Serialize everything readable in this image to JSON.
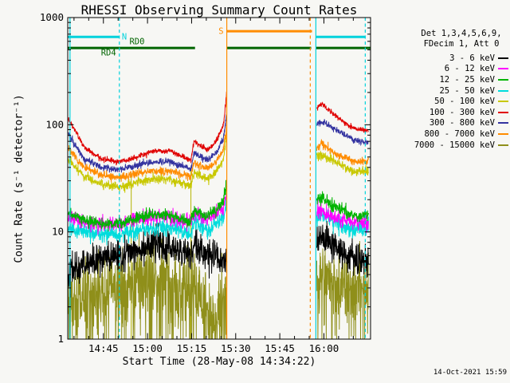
{
  "title": "RHESSI Observing Summary Count Rates",
  "footer_timestamp": "14-Oct-2021 15:59",
  "chart_data": {
    "type": "line",
    "title": "RHESSI Observing Summary Count Rates",
    "xlabel": "Start Time (28-May-08 14:34:22)",
    "ylabel": "Count Rate (s⁻¹ detector⁻¹)",
    "ylog": true,
    "ylim": [
      1,
      1000
    ],
    "x_range_minutes": [
      -1.5,
      101.5
    ],
    "x_ticks": [
      {
        "t": 10.633,
        "label": "14:45"
      },
      {
        "t": 25.633,
        "label": "15:00"
      },
      {
        "t": 40.633,
        "label": "15:15"
      },
      {
        "t": 55.633,
        "label": "15:30"
      },
      {
        "t": 70.633,
        "label": "15:45"
      },
      {
        "t": 85.633,
        "label": "16:00"
      }
    ],
    "x_minor_step": 5,
    "x_minor_offset": 0.633,
    "y_ticks": [
      {
        "v": 1,
        "label": "1"
      },
      {
        "v": 10,
        "label": "10"
      },
      {
        "v": 100,
        "label": "100"
      },
      {
        "v": 1000,
        "label": "1000"
      }
    ],
    "legend_header": [
      "Det 1,3,4,5,6,9,",
      "FDecim 1, Att 0"
    ],
    "series": [
      {
        "name": "3 - 6 keV",
        "color": "#000000",
        "noise": 0.075,
        "segments": [
          {
            "t": [
              -1.3,
              4,
              10,
              16,
              22,
              27,
              33,
              38,
              40.4,
              41.5,
              43,
              46,
              49,
              51.5,
              52.6
            ],
            "v": [
              4.2,
              5,
              5.5,
              6,
              7,
              7.5,
              7.2,
              6.3,
              6,
              7.5,
              7,
              6.2,
              5.6,
              5.2,
              5.2
            ]
          },
          {
            "t": [
              83.2,
              85,
              88,
              92,
              96,
              100.8
            ],
            "v": [
              8.5,
              8.5,
              7.5,
              6.5,
              5.6,
              5.2
            ]
          }
        ]
      },
      {
        "name": "6 - 12 keV",
        "color": "#ff00ff",
        "noise": 0.035,
        "segments": [
          {
            "t": [
              -1.3,
              4,
              10,
              16,
              22,
              27,
              33,
              38,
              40.4,
              41.5,
              43,
              46,
              49,
              51.5,
              52.6
            ],
            "v": [
              14,
              12.5,
              12,
              12,
              13,
              14,
              13.5,
              12.5,
              12,
              15,
              14,
              13,
              14.5,
              17,
              22
            ]
          },
          {
            "t": [
              83.2,
              85,
              88,
              92,
              96,
              100.8
            ],
            "v": [
              15,
              15.5,
              14,
              13,
              12,
              12
            ]
          }
        ]
      },
      {
        "name": "12 - 25 keV",
        "color": "#00b400",
        "noise": 0.028,
        "segments": [
          {
            "t": [
              -1.3,
              4,
              10,
              16,
              22,
              27,
              33,
              38,
              40.4,
              41.5,
              43,
              46,
              49,
              51.5,
              52.6
            ],
            "v": [
              15,
              13,
              12,
              12,
              13.5,
              14.5,
              14.5,
              13,
              12.5,
              16,
              15,
              14,
              16,
              20,
              28
            ]
          },
          {
            "t": [
              83.2,
              85,
              88,
              92,
              96,
              100.8
            ],
            "v": [
              20,
              21,
              18,
              16,
              14,
              14
            ]
          }
        ]
      },
      {
        "name": "25 - 50 keV",
        "color": "#00dcdc",
        "noise": 0.04,
        "segments": [
          {
            "t": [
              -1.3,
              4,
              10,
              16,
              22,
              27,
              33,
              38,
              40.4,
              41.5,
              43,
              46,
              49,
              51.5,
              52.6
            ],
            "v": [
              11,
              10,
              9.5,
              9.5,
              10.5,
              11,
              11,
              10,
              9.8,
              12.5,
              11.5,
              10.5,
              12,
              14,
              18
            ]
          },
          {
            "t": [
              83.2,
              85,
              88,
              92,
              96,
              100.8
            ],
            "v": [
              14,
              14.5,
              13,
              11.5,
              10.5,
              11
            ]
          }
        ]
      },
      {
        "name": "50 - 100 keV",
        "color": "#c8c800",
        "noise": 0.022,
        "segments": [
          {
            "t": [
              -1.3,
              4,
              10,
              16,
              22,
              27,
              33,
              38,
              40.4,
              41.5,
              43,
              46,
              49,
              51.5,
              52.6
            ],
            "v": [
              48,
              33,
              28,
              26,
              29,
              31,
              31,
              28,
              27,
              37,
              34,
              31,
              36,
              48,
              80
            ]
          },
          {
            "t": [
              83.2,
              85,
              88,
              92,
              96,
              100.8
            ],
            "v": [
              50,
              53,
              47,
              41,
              36,
              37
            ]
          }
        ]
      },
      {
        "name": "100 - 300 keV",
        "color": "#e00000",
        "noise": 0.013,
        "segments": [
          {
            "t": [
              -1.3,
              4,
              10,
              16,
              22,
              27,
              33,
              38,
              40.4,
              41.5,
              43,
              46,
              49,
              51.5,
              52.6
            ],
            "v": [
              115,
              62,
              48,
              45,
              50,
              56,
              57,
              50,
              47,
              72,
              66,
              58,
              70,
              100,
              200
            ]
          },
          {
            "t": [
              83.2,
              85,
              87,
              90,
              93,
              96,
              100.8
            ],
            "v": [
              140,
              158,
              138,
              118,
              103,
              92,
              88
            ]
          }
        ]
      },
      {
        "name": "300 - 800 keV",
        "color": "#3333a0",
        "noise": 0.016,
        "segments": [
          {
            "t": [
              -1.3,
              4,
              10,
              16,
              22,
              27,
              33,
              38,
              40.4,
              41.5,
              43,
              46,
              49,
              51.5,
              52.6
            ],
            "v": [
              82,
              48,
              40,
              38,
              42,
              45,
              45,
              41,
              39,
              55,
              52,
              47,
              55,
              75,
              130
            ]
          },
          {
            "t": [
              83.2,
              85,
              88,
              92,
              96,
              100.8
            ],
            "v": [
              100,
              108,
              95,
              83,
              72,
              68
            ]
          }
        ]
      },
      {
        "name": "800 - 7000 keV",
        "color": "#ff8c00",
        "noise": 0.018,
        "segments": [
          {
            "t": [
              -1.3,
              4,
              10,
              16,
              22,
              27,
              33,
              38,
              40.4,
              41.5,
              43,
              46,
              49,
              51.5,
              52.6
            ],
            "v": [
              60,
              40,
              34,
              32,
              35,
              37,
              37,
              34,
              33,
              45,
              42,
              39,
              45,
              60,
              100
            ]
          },
          {
            "t": [
              83.2,
              85,
              88,
              92,
              96,
              100.8
            ],
            "v": [
              62,
              66,
              58,
              50,
              45,
              46
            ]
          }
        ]
      },
      {
        "name": "7000 - 15000 keV",
        "color": "#8f8f1a",
        "noise": 0.16,
        "spiky": true,
        "segments": [
          {
            "t": [
              -1.3,
              6,
              12,
              20,
              27,
              33,
              38,
              41.5,
              44,
              47,
              50,
              52.6
            ],
            "v": [
              2.2,
              2.5,
              3,
              3.5,
              4,
              3.6,
              3,
              3.2,
              2.2,
              1.7,
              1.8,
              2
            ]
          },
          {
            "t": [
              83.2,
              86,
              90,
              94,
              100.8
            ],
            "v": [
              4,
              4,
              3.3,
              2.8,
              3
            ]
          }
        ]
      }
    ],
    "draw_order": [
      8,
      0,
      3,
      1,
      2,
      4,
      7,
      6,
      5
    ],
    "flags": [
      {
        "label": "N",
        "color": "#00d2dc",
        "value": 660,
        "spans": [
          [
            -1.5,
            16.06
          ],
          [
            82.9,
            99.7
          ]
        ],
        "text_labels": [
          {
            "text": "N",
            "t": 16.9,
            "v": 660
          }
        ]
      },
      {
        "label": "S",
        "color": "#ff8c00",
        "value": 745,
        "spans": [
          [
            52.6,
            81.6
          ]
        ],
        "text_labels": [
          {
            "text": "S",
            "t": 49.8,
            "v": 745
          }
        ]
      },
      {
        "label": "RD",
        "color": "#006400",
        "value": 520,
        "spans": [
          [
            -1.5,
            41.8
          ],
          [
            52.6,
            81.3
          ],
          [
            82.9,
            101.5
          ]
        ],
        "text_labels": [
          {
            "text": "RD0",
            "t": 19.5,
            "v": 600
          },
          {
            "text": "RD4",
            "t": 9.8,
            "v": 470
          }
        ]
      }
    ],
    "guides": [
      {
        "t": -0.73,
        "color": "#00d2dc",
        "dashed": false
      },
      {
        "t": 16.06,
        "color": "#00d2dc",
        "dashed": true
      },
      {
        "t": 52.6,
        "color": "#ff8c00",
        "dashed": false
      },
      {
        "t": 81.0,
        "color": "#ff8c00",
        "dashed": true
      },
      {
        "t": 82.9,
        "color": "#00d2dc",
        "dashed": false
      },
      {
        "t": 99.7,
        "color": "#00d2dc",
        "dashed": true
      }
    ],
    "drops": [
      {
        "t": 20.1,
        "v_top": 36
      },
      {
        "t": 40.4,
        "v_top": 38
      }
    ],
    "drops_color": "#b4b400"
  }
}
